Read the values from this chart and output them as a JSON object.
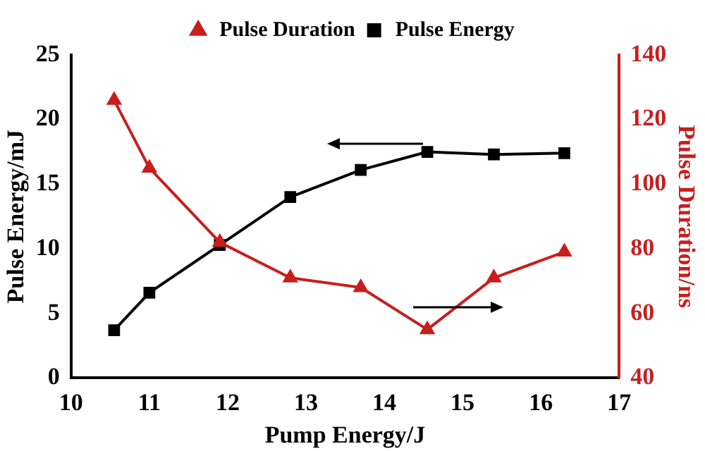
{
  "chart_data": {
    "type": "line",
    "xlabel": "Pump Energy/J",
    "ylabel": "Pulse Energy/mJ",
    "y2label": "Pulse Duration/ns",
    "x": [
      10.55,
      11.0,
      11.9,
      12.8,
      13.7,
      14.55,
      15.4,
      16.3
    ],
    "series": [
      {
        "name": "Pulse Energy",
        "color": "#000000",
        "marker": "square",
        "values": [
          3.7,
          6.6,
          10.3,
          14.0,
          16.1,
          17.5,
          17.3,
          17.4
        ]
      },
      {
        "name": "Pulse Duration",
        "color": "#c81e1e",
        "marker": "triangle",
        "axis": "y2",
        "values": [
          126,
          105,
          82,
          71,
          68,
          55,
          71,
          79
        ]
      }
    ],
    "xlim": [
      10,
      17
    ],
    "xticks": [
      10,
      11,
      12,
      13,
      14,
      15,
      16,
      17
    ],
    "ylim": [
      0,
      25
    ],
    "yticks": [
      0,
      5,
      10,
      15,
      20,
      25
    ],
    "y2lim": [
      40,
      140
    ],
    "y2ticks": [
      40,
      60,
      80,
      100,
      120,
      140
    ],
    "grid": false,
    "legend": "top",
    "line_style": "solid"
  }
}
